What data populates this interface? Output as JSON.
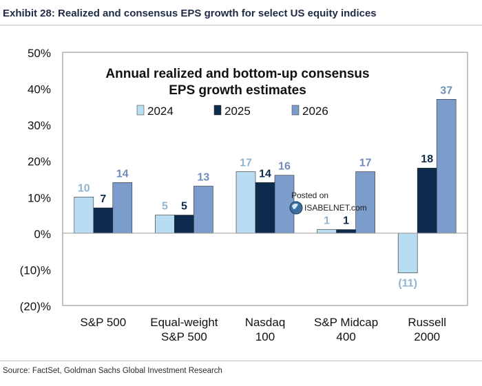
{
  "header": {
    "title": "Exhibit 28: Realized and consensus EPS growth for select US equity indices"
  },
  "watermark": {
    "line1": "Posted on",
    "line2": "ISABELNET.com"
  },
  "footer": {
    "source": "Source: FactSet, Goldman Sachs Global Investment Research"
  },
  "chart_data": {
    "type": "bar",
    "title": "Annual realized and bottom-up consensus EPS growth estimates",
    "title_lines": [
      "Annual realized and bottom-up consensus",
      "EPS growth estimates"
    ],
    "xlabel": "",
    "ylabel": "",
    "categories": [
      [
        "S&P 500"
      ],
      [
        "Equal-weight",
        "S&P 500"
      ],
      [
        "Nasdaq",
        "100"
      ],
      [
        "S&P Midcap",
        "400"
      ],
      [
        "Russell",
        "2000"
      ]
    ],
    "series": [
      {
        "name": "2024",
        "color": "#b8dcf2",
        "label_color": "#8fb4d2",
        "values": [
          10,
          5,
          17,
          1,
          -11
        ],
        "labels": [
          "10",
          "5",
          "17",
          "1",
          "(11)"
        ]
      },
      {
        "name": "2025",
        "color": "#0d2b4e",
        "label_color": "#0d2b4e",
        "values": [
          7,
          5,
          14,
          1,
          18
        ],
        "labels": [
          "7",
          "5",
          "14",
          "1",
          "18"
        ]
      },
      {
        "name": "2026",
        "color": "#7c9ccb",
        "label_color": "#6f8db8",
        "values": [
          14,
          13,
          16,
          17,
          37
        ],
        "labels": [
          "14",
          "13",
          "16",
          "17",
          "37"
        ]
      }
    ],
    "ylim": [
      -20,
      50
    ],
    "yticks": [
      -20,
      -10,
      0,
      10,
      20,
      30,
      40,
      50
    ],
    "ytick_labels": [
      "(20)%",
      "(10)%",
      "0%",
      "10%",
      "20%",
      "30%",
      "40%",
      "50%"
    ],
    "grid": false,
    "legend_position": "top-center"
  }
}
